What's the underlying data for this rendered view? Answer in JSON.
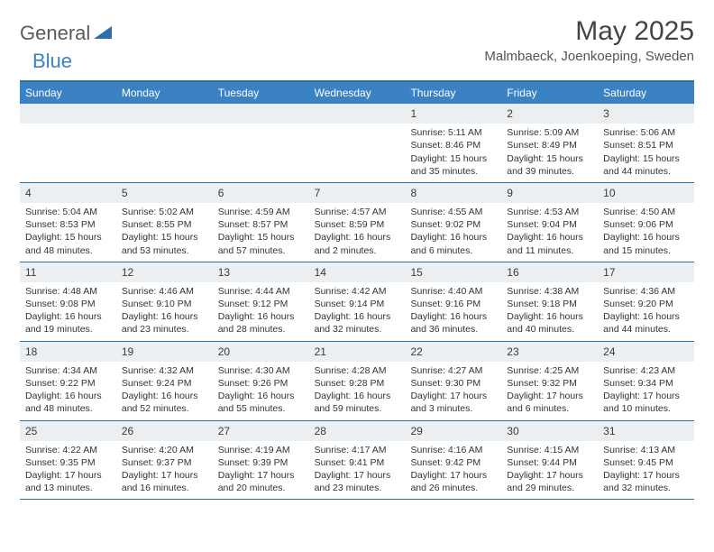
{
  "brand": {
    "part1": "General",
    "part2": "Blue"
  },
  "title": "May 2025",
  "location": "Malmbaeck, Joenkoeping, Sweden",
  "colors": {
    "header_bg": "#3b82c4",
    "border": "#2f6fa8",
    "daynum_bg": "#eceff1",
    "text": "#333333",
    "title_color": "#444444"
  },
  "weekdays": [
    "Sunday",
    "Monday",
    "Tuesday",
    "Wednesday",
    "Thursday",
    "Friday",
    "Saturday"
  ],
  "weeks": [
    [
      null,
      null,
      null,
      null,
      {
        "n": "1",
        "sr": "5:11 AM",
        "ss": "8:46 PM",
        "dl": "15 hours and 35 minutes."
      },
      {
        "n": "2",
        "sr": "5:09 AM",
        "ss": "8:49 PM",
        "dl": "15 hours and 39 minutes."
      },
      {
        "n": "3",
        "sr": "5:06 AM",
        "ss": "8:51 PM",
        "dl": "15 hours and 44 minutes."
      }
    ],
    [
      {
        "n": "4",
        "sr": "5:04 AM",
        "ss": "8:53 PM",
        "dl": "15 hours and 48 minutes."
      },
      {
        "n": "5",
        "sr": "5:02 AM",
        "ss": "8:55 PM",
        "dl": "15 hours and 53 minutes."
      },
      {
        "n": "6",
        "sr": "4:59 AM",
        "ss": "8:57 PM",
        "dl": "15 hours and 57 minutes."
      },
      {
        "n": "7",
        "sr": "4:57 AM",
        "ss": "8:59 PM",
        "dl": "16 hours and 2 minutes."
      },
      {
        "n": "8",
        "sr": "4:55 AM",
        "ss": "9:02 PM",
        "dl": "16 hours and 6 minutes."
      },
      {
        "n": "9",
        "sr": "4:53 AM",
        "ss": "9:04 PM",
        "dl": "16 hours and 11 minutes."
      },
      {
        "n": "10",
        "sr": "4:50 AM",
        "ss": "9:06 PM",
        "dl": "16 hours and 15 minutes."
      }
    ],
    [
      {
        "n": "11",
        "sr": "4:48 AM",
        "ss": "9:08 PM",
        "dl": "16 hours and 19 minutes."
      },
      {
        "n": "12",
        "sr": "4:46 AM",
        "ss": "9:10 PM",
        "dl": "16 hours and 23 minutes."
      },
      {
        "n": "13",
        "sr": "4:44 AM",
        "ss": "9:12 PM",
        "dl": "16 hours and 28 minutes."
      },
      {
        "n": "14",
        "sr": "4:42 AM",
        "ss": "9:14 PM",
        "dl": "16 hours and 32 minutes."
      },
      {
        "n": "15",
        "sr": "4:40 AM",
        "ss": "9:16 PM",
        "dl": "16 hours and 36 minutes."
      },
      {
        "n": "16",
        "sr": "4:38 AM",
        "ss": "9:18 PM",
        "dl": "16 hours and 40 minutes."
      },
      {
        "n": "17",
        "sr": "4:36 AM",
        "ss": "9:20 PM",
        "dl": "16 hours and 44 minutes."
      }
    ],
    [
      {
        "n": "18",
        "sr": "4:34 AM",
        "ss": "9:22 PM",
        "dl": "16 hours and 48 minutes."
      },
      {
        "n": "19",
        "sr": "4:32 AM",
        "ss": "9:24 PM",
        "dl": "16 hours and 52 minutes."
      },
      {
        "n": "20",
        "sr": "4:30 AM",
        "ss": "9:26 PM",
        "dl": "16 hours and 55 minutes."
      },
      {
        "n": "21",
        "sr": "4:28 AM",
        "ss": "9:28 PM",
        "dl": "16 hours and 59 minutes."
      },
      {
        "n": "22",
        "sr": "4:27 AM",
        "ss": "9:30 PM",
        "dl": "17 hours and 3 minutes."
      },
      {
        "n": "23",
        "sr": "4:25 AM",
        "ss": "9:32 PM",
        "dl": "17 hours and 6 minutes."
      },
      {
        "n": "24",
        "sr": "4:23 AM",
        "ss": "9:34 PM",
        "dl": "17 hours and 10 minutes."
      }
    ],
    [
      {
        "n": "25",
        "sr": "4:22 AM",
        "ss": "9:35 PM",
        "dl": "17 hours and 13 minutes."
      },
      {
        "n": "26",
        "sr": "4:20 AM",
        "ss": "9:37 PM",
        "dl": "17 hours and 16 minutes."
      },
      {
        "n": "27",
        "sr": "4:19 AM",
        "ss": "9:39 PM",
        "dl": "17 hours and 20 minutes."
      },
      {
        "n": "28",
        "sr": "4:17 AM",
        "ss": "9:41 PM",
        "dl": "17 hours and 23 minutes."
      },
      {
        "n": "29",
        "sr": "4:16 AM",
        "ss": "9:42 PM",
        "dl": "17 hours and 26 minutes."
      },
      {
        "n": "30",
        "sr": "4:15 AM",
        "ss": "9:44 PM",
        "dl": "17 hours and 29 minutes."
      },
      {
        "n": "31",
        "sr": "4:13 AM",
        "ss": "9:45 PM",
        "dl": "17 hours and 32 minutes."
      }
    ]
  ],
  "labels": {
    "sunrise": "Sunrise:",
    "sunset": "Sunset:",
    "daylight": "Daylight:"
  }
}
